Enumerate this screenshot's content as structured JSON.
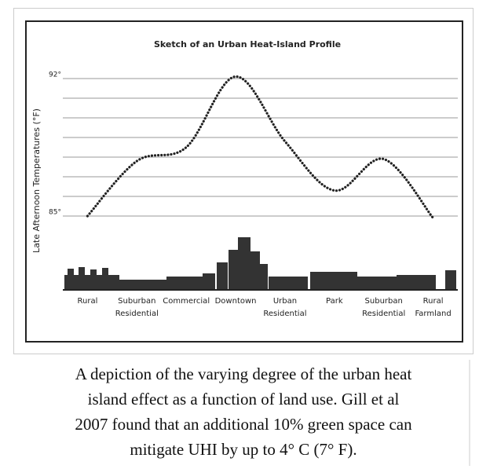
{
  "chart_data": {
    "type": "line",
    "title": "Sketch of an Urban Heat-Island Profile",
    "ylabel": "Late Afternoon Temperatures (°F)",
    "categories": [
      "Rural",
      "Suburban Residential",
      "Commercial",
      "Downtown",
      "Urban Residential",
      "Park",
      "Suburban Residential",
      "Rural Farmland"
    ],
    "values": [
      85,
      87.8,
      88.5,
      92.1,
      88.8,
      86.3,
      87.9,
      84.9
    ],
    "color": "#222222",
    "ylim": [
      85,
      92
    ],
    "yticks": [
      {
        "value": 85,
        "label": "85°"
      },
      {
        "value": 92,
        "label": "92°"
      }
    ],
    "ygrid": [
      86,
      87,
      88,
      89,
      90,
      91
    ],
    "grid": true
  },
  "caption": [
    "A depiction of the varying degree of the urban heat",
    "island effect as a function of land use. Gill et al",
    "2007 found that an additional 10% green space can",
    "mitigate UHI by up to 4° C (7° F)."
  ]
}
